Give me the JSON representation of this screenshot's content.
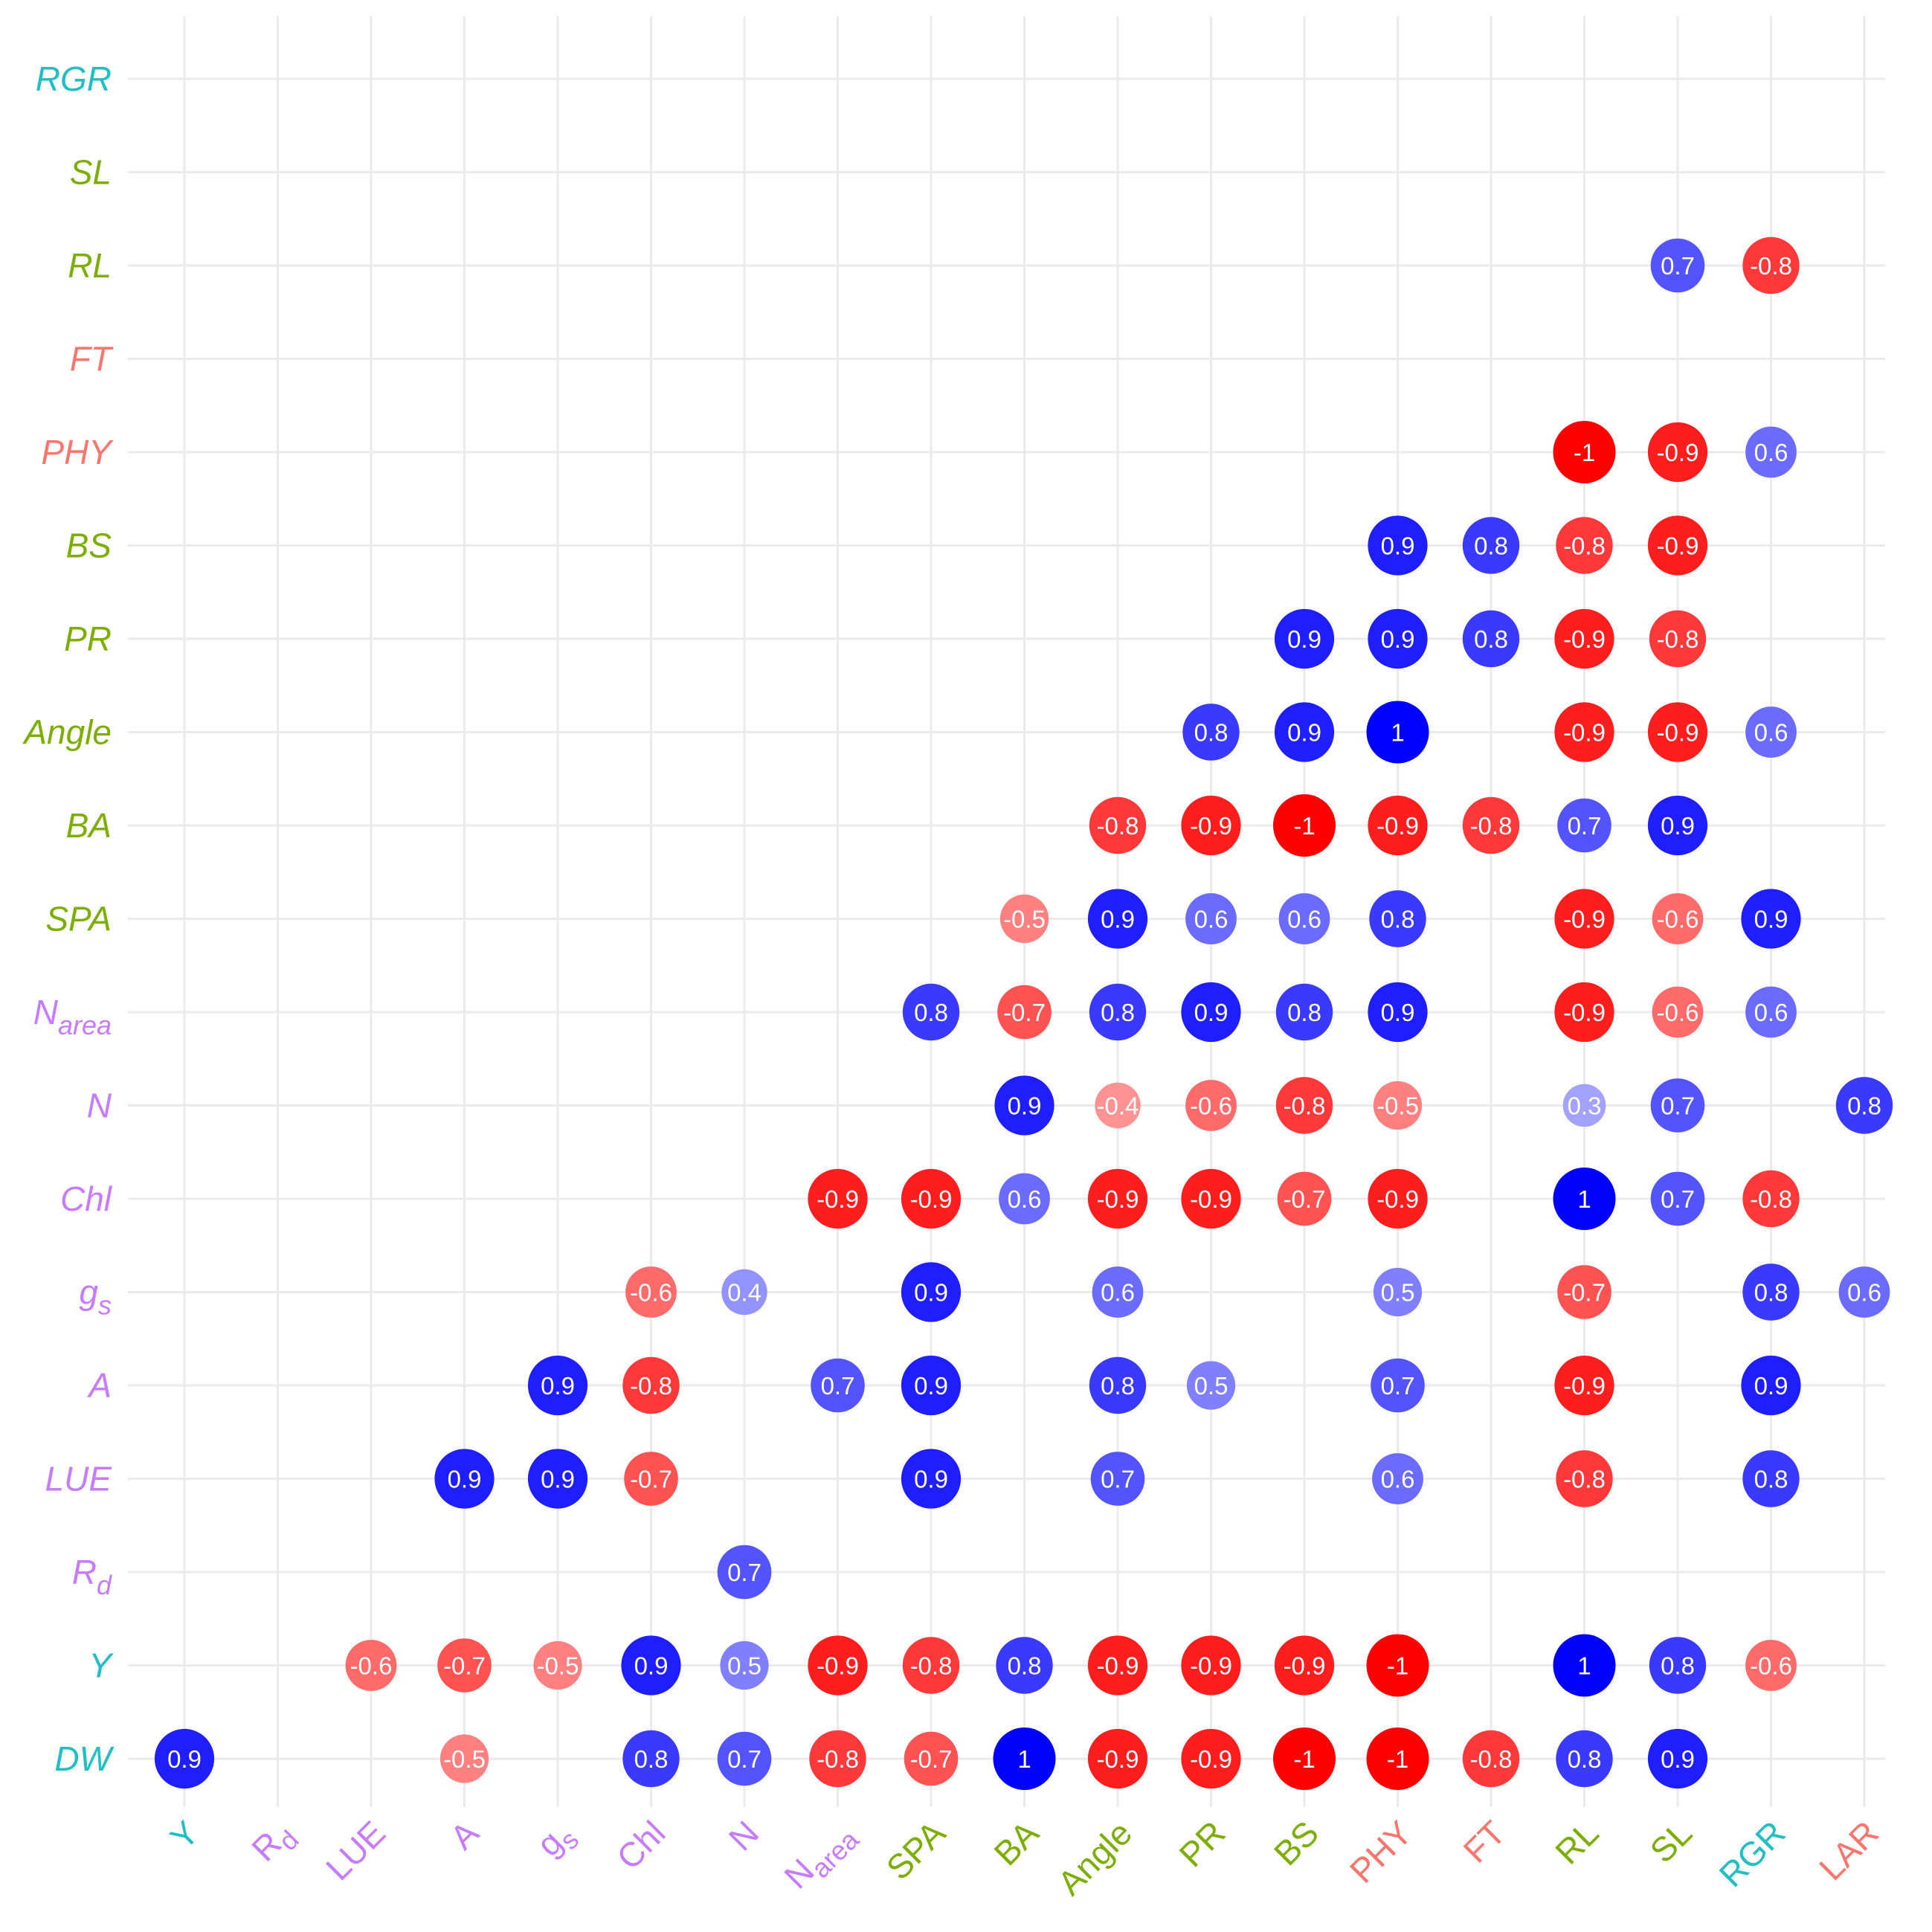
{
  "colors": {
    "group_cyan": "#1FBFC4",
    "group_purple": "#C77CFF",
    "group_green": "#7CAE00",
    "group_red": "#F8766D",
    "positive": "#0000FF",
    "negative": "#FF0000",
    "grid": "#EBEBEB"
  },
  "chart_data": {
    "type": "heatmap",
    "style": "correlation bubble matrix",
    "grid": true,
    "x_labels": [
      {
        "main": "Y",
        "sub": "",
        "italic": false,
        "color_group": "cyan"
      },
      {
        "main": "R",
        "sub": "d",
        "italic": false,
        "color_group": "purple"
      },
      {
        "main": "LUE",
        "sub": "",
        "italic": false,
        "color_group": "purple"
      },
      {
        "main": "A",
        "sub": "",
        "italic": false,
        "color_group": "purple"
      },
      {
        "main": "g",
        "sub": "s",
        "italic": false,
        "color_group": "purple"
      },
      {
        "main": "Chl",
        "sub": "",
        "italic": false,
        "color_group": "purple"
      },
      {
        "main": "N",
        "sub": "",
        "italic": false,
        "color_group": "purple"
      },
      {
        "main": "N",
        "sub": "area",
        "italic": false,
        "color_group": "purple"
      },
      {
        "main": "SPA",
        "sub": "",
        "italic": false,
        "color_group": "green"
      },
      {
        "main": "BA",
        "sub": "",
        "italic": false,
        "color_group": "green"
      },
      {
        "main": "Angle",
        "sub": "",
        "italic": false,
        "color_group": "green"
      },
      {
        "main": "PR",
        "sub": "",
        "italic": false,
        "color_group": "green"
      },
      {
        "main": "BS",
        "sub": "",
        "italic": false,
        "color_group": "green"
      },
      {
        "main": "PHY",
        "sub": "",
        "italic": false,
        "color_group": "red"
      },
      {
        "main": "FT",
        "sub": "",
        "italic": false,
        "color_group": "red"
      },
      {
        "main": "RL",
        "sub": "",
        "italic": false,
        "color_group": "green"
      },
      {
        "main": "SL",
        "sub": "",
        "italic": false,
        "color_group": "green"
      },
      {
        "main": "RGR",
        "sub": "",
        "italic": false,
        "color_group": "cyan"
      },
      {
        "main": "LAR",
        "sub": "",
        "italic": false,
        "color_group": "red"
      }
    ],
    "y_labels": [
      {
        "main": "DW",
        "sub": "",
        "color_group": "cyan"
      },
      {
        "main": "Y",
        "sub": "",
        "color_group": "cyan"
      },
      {
        "main": "R",
        "sub": "d",
        "color_group": "purple"
      },
      {
        "main": "LUE",
        "sub": "",
        "color_group": "purple"
      },
      {
        "main": "A",
        "sub": "",
        "color_group": "purple"
      },
      {
        "main": "g",
        "sub": "s",
        "color_group": "purple"
      },
      {
        "main": "Chl",
        "sub": "",
        "color_group": "purple"
      },
      {
        "main": "N",
        "sub": "",
        "color_group": "purple"
      },
      {
        "main": "N",
        "sub": "area",
        "color_group": "purple"
      },
      {
        "main": "SPA",
        "sub": "",
        "color_group": "green"
      },
      {
        "main": "BA",
        "sub": "",
        "color_group": "green"
      },
      {
        "main": "Angle",
        "sub": "",
        "color_group": "green"
      },
      {
        "main": "PR",
        "sub": "",
        "color_group": "green"
      },
      {
        "main": "BS",
        "sub": "",
        "color_group": "green"
      },
      {
        "main": "PHY",
        "sub": "",
        "color_group": "red"
      },
      {
        "main": "FT",
        "sub": "",
        "color_group": "red"
      },
      {
        "main": "RL",
        "sub": "",
        "color_group": "green"
      },
      {
        "main": "SL",
        "sub": "",
        "color_group": "green"
      },
      {
        "main": "RGR",
        "sub": "",
        "color_group": "cyan"
      }
    ],
    "cells": [
      {
        "x": "Y",
        "y": "DW",
        "value": 0.9,
        "label": "0.9"
      },
      {
        "x": "A",
        "y": "DW",
        "value": -0.5,
        "label": "-0.5"
      },
      {
        "x": "Chl",
        "y": "DW",
        "value": 0.8,
        "label": "0.8"
      },
      {
        "x": "N",
        "y": "DW",
        "value": 0.7,
        "label": "0.7"
      },
      {
        "x": "Narea",
        "y": "DW",
        "value": -0.8,
        "label": "-0.8"
      },
      {
        "x": "SPA",
        "y": "DW",
        "value": -0.7,
        "label": "-0.7"
      },
      {
        "x": "BA",
        "y": "DW",
        "value": 1,
        "label": "1"
      },
      {
        "x": "Angle",
        "y": "DW",
        "value": -0.9,
        "label": "-0.9"
      },
      {
        "x": "PR",
        "y": "DW",
        "value": -0.9,
        "label": "-0.9"
      },
      {
        "x": "BS",
        "y": "DW",
        "value": -1,
        "label": "-1"
      },
      {
        "x": "PHY",
        "y": "DW",
        "value": -1,
        "label": "-1"
      },
      {
        "x": "FT",
        "y": "DW",
        "value": -0.8,
        "label": "-0.8"
      },
      {
        "x": "RL",
        "y": "DW",
        "value": 0.8,
        "label": "0.8"
      },
      {
        "x": "SL",
        "y": "DW",
        "value": 0.9,
        "label": "0.9"
      },
      {
        "x": "LUE",
        "y": "Y",
        "value": -0.6,
        "label": "-0.6"
      },
      {
        "x": "A",
        "y": "Y",
        "value": -0.7,
        "label": "-0.7"
      },
      {
        "x": "gs",
        "y": "Y",
        "value": -0.5,
        "label": "-0.5"
      },
      {
        "x": "Chl",
        "y": "Y",
        "value": 0.9,
        "label": "0.9"
      },
      {
        "x": "N",
        "y": "Y",
        "value": 0.5,
        "label": "0.5"
      },
      {
        "x": "Narea",
        "y": "Y",
        "value": -0.9,
        "label": "-0.9"
      },
      {
        "x": "SPA",
        "y": "Y",
        "value": -0.8,
        "label": "-0.8"
      },
      {
        "x": "BA",
        "y": "Y",
        "value": 0.8,
        "label": "0.8"
      },
      {
        "x": "Angle",
        "y": "Y",
        "value": -0.9,
        "label": "-0.9"
      },
      {
        "x": "PR",
        "y": "Y",
        "value": -0.9,
        "label": "-0.9"
      },
      {
        "x": "BS",
        "y": "Y",
        "value": -0.9,
        "label": "-0.9"
      },
      {
        "x": "PHY",
        "y": "Y",
        "value": -1,
        "label": "-1"
      },
      {
        "x": "RL",
        "y": "Y",
        "value": 1,
        "label": "1"
      },
      {
        "x": "SL",
        "y": "Y",
        "value": 0.8,
        "label": "0.8"
      },
      {
        "x": "RGR",
        "y": "Y",
        "value": -0.6,
        "label": "-0.6"
      },
      {
        "x": "N",
        "y": "Rd",
        "value": 0.7,
        "label": "0.7"
      },
      {
        "x": "A",
        "y": "LUE",
        "value": 0.9,
        "label": "0.9"
      },
      {
        "x": "gs",
        "y": "LUE",
        "value": 0.9,
        "label": "0.9"
      },
      {
        "x": "Chl",
        "y": "LUE",
        "value": -0.7,
        "label": "-0.7"
      },
      {
        "x": "SPA",
        "y": "LUE",
        "value": 0.9,
        "label": "0.9"
      },
      {
        "x": "Angle",
        "y": "LUE",
        "value": 0.7,
        "label": "0.7"
      },
      {
        "x": "PHY",
        "y": "LUE",
        "value": 0.6,
        "label": "0.6"
      },
      {
        "x": "RL",
        "y": "LUE",
        "value": -0.8,
        "label": "-0.8"
      },
      {
        "x": "RGR",
        "y": "LUE",
        "value": 0.8,
        "label": "0.8"
      },
      {
        "x": "gs",
        "y": "A",
        "value": 0.9,
        "label": "0.9"
      },
      {
        "x": "Chl",
        "y": "A",
        "value": -0.8,
        "label": "-0.8"
      },
      {
        "x": "Narea",
        "y": "A",
        "value": 0.7,
        "label": "0.7"
      },
      {
        "x": "SPA",
        "y": "A",
        "value": 0.9,
        "label": "0.9"
      },
      {
        "x": "Angle",
        "y": "A",
        "value": 0.8,
        "label": "0.8"
      },
      {
        "x": "PR",
        "y": "A",
        "value": 0.5,
        "label": "0.5"
      },
      {
        "x": "PHY",
        "y": "A",
        "value": 0.7,
        "label": "0.7"
      },
      {
        "x": "RL",
        "y": "A",
        "value": -0.9,
        "label": "-0.9"
      },
      {
        "x": "RGR",
        "y": "A",
        "value": 0.9,
        "label": "0.9"
      },
      {
        "x": "Chl",
        "y": "gs",
        "value": -0.6,
        "label": "-0.6"
      },
      {
        "x": "N",
        "y": "gs",
        "value": 0.4,
        "label": "0.4"
      },
      {
        "x": "SPA",
        "y": "gs",
        "value": 0.9,
        "label": "0.9"
      },
      {
        "x": "Angle",
        "y": "gs",
        "value": 0.6,
        "label": "0.6"
      },
      {
        "x": "PHY",
        "y": "gs",
        "value": 0.5,
        "label": "0.5"
      },
      {
        "x": "RL",
        "y": "gs",
        "value": -0.7,
        "label": "-0.7"
      },
      {
        "x": "RGR",
        "y": "gs",
        "value": 0.8,
        "label": "0.8"
      },
      {
        "x": "LAR",
        "y": "gs",
        "value": 0.6,
        "label": "0.6"
      },
      {
        "x": "Narea",
        "y": "Chl",
        "value": -0.9,
        "label": "-0.9"
      },
      {
        "x": "SPA",
        "y": "Chl",
        "value": -0.9,
        "label": "-0.9"
      },
      {
        "x": "BA",
        "y": "Chl",
        "value": 0.6,
        "label": "0.6"
      },
      {
        "x": "Angle",
        "y": "Chl",
        "value": -0.9,
        "label": "-0.9"
      },
      {
        "x": "PR",
        "y": "Chl",
        "value": -0.9,
        "label": "-0.9"
      },
      {
        "x": "BS",
        "y": "Chl",
        "value": -0.7,
        "label": "-0.7"
      },
      {
        "x": "PHY",
        "y": "Chl",
        "value": -0.9,
        "label": "-0.9"
      },
      {
        "x": "RL",
        "y": "Chl",
        "value": 1,
        "label": "1"
      },
      {
        "x": "SL",
        "y": "Chl",
        "value": 0.7,
        "label": "0.7"
      },
      {
        "x": "RGR",
        "y": "Chl",
        "value": -0.8,
        "label": "-0.8"
      },
      {
        "x": "BA",
        "y": "N",
        "value": 0.9,
        "label": "0.9"
      },
      {
        "x": "Angle",
        "y": "N",
        "value": -0.4,
        "label": "-0.4"
      },
      {
        "x": "PR",
        "y": "N",
        "value": -0.6,
        "label": "-0.6"
      },
      {
        "x": "BS",
        "y": "N",
        "value": -0.8,
        "label": "-0.8"
      },
      {
        "x": "PHY",
        "y": "N",
        "value": -0.5,
        "label": "-0.5"
      },
      {
        "x": "RL",
        "y": "N",
        "value": 0.3,
        "label": "0.3"
      },
      {
        "x": "SL",
        "y": "N",
        "value": 0.7,
        "label": "0.7"
      },
      {
        "x": "LAR",
        "y": "N",
        "value": 0.8,
        "label": "0.8"
      },
      {
        "x": "SPA",
        "y": "Narea",
        "value": 0.8,
        "label": "0.8"
      },
      {
        "x": "BA",
        "y": "Narea",
        "value": -0.7,
        "label": "-0.7"
      },
      {
        "x": "Angle",
        "y": "Narea",
        "value": 0.8,
        "label": "0.8"
      },
      {
        "x": "PR",
        "y": "Narea",
        "value": 0.9,
        "label": "0.9"
      },
      {
        "x": "BS",
        "y": "Narea",
        "value": 0.8,
        "label": "0.8"
      },
      {
        "x": "PHY",
        "y": "Narea",
        "value": 0.9,
        "label": "0.9"
      },
      {
        "x": "RL",
        "y": "Narea",
        "value": -0.9,
        "label": "-0.9"
      },
      {
        "x": "SL",
        "y": "Narea",
        "value": -0.6,
        "label": "-0.6"
      },
      {
        "x": "RGR",
        "y": "Narea",
        "value": 0.6,
        "label": "0.6"
      },
      {
        "x": "BA",
        "y": "SPA",
        "value": -0.5,
        "label": "-0.5"
      },
      {
        "x": "Angle",
        "y": "SPA",
        "value": 0.9,
        "label": "0.9"
      },
      {
        "x": "PR",
        "y": "SPA",
        "value": 0.6,
        "label": "0.6"
      },
      {
        "x": "BS",
        "y": "SPA",
        "value": 0.6,
        "label": "0.6"
      },
      {
        "x": "PHY",
        "y": "SPA",
        "value": 0.8,
        "label": "0.8"
      },
      {
        "x": "RL",
        "y": "SPA",
        "value": -0.9,
        "label": "-0.9"
      },
      {
        "x": "SL",
        "y": "SPA",
        "value": -0.6,
        "label": "-0.6"
      },
      {
        "x": "RGR",
        "y": "SPA",
        "value": 0.9,
        "label": "0.9"
      },
      {
        "x": "Angle",
        "y": "BA",
        "value": -0.8,
        "label": "-0.8"
      },
      {
        "x": "PR",
        "y": "BA",
        "value": -0.9,
        "label": "-0.9"
      },
      {
        "x": "BS",
        "y": "BA",
        "value": -1,
        "label": "-1"
      },
      {
        "x": "PHY",
        "y": "BA",
        "value": -0.9,
        "label": "-0.9"
      },
      {
        "x": "FT",
        "y": "BA",
        "value": -0.8,
        "label": "-0.8"
      },
      {
        "x": "RL",
        "y": "BA",
        "value": 0.7,
        "label": "0.7"
      },
      {
        "x": "SL",
        "y": "BA",
        "value": 0.9,
        "label": "0.9"
      },
      {
        "x": "PR",
        "y": "Angle",
        "value": 0.8,
        "label": "0.8"
      },
      {
        "x": "BS",
        "y": "Angle",
        "value": 0.9,
        "label": "0.9"
      },
      {
        "x": "PHY",
        "y": "Angle",
        "value": 1,
        "label": "1"
      },
      {
        "x": "RL",
        "y": "Angle",
        "value": -0.9,
        "label": "-0.9"
      },
      {
        "x": "SL",
        "y": "Angle",
        "value": -0.9,
        "label": "-0.9"
      },
      {
        "x": "RGR",
        "y": "Angle",
        "value": 0.6,
        "label": "0.6"
      },
      {
        "x": "BS",
        "y": "PR",
        "value": 0.9,
        "label": "0.9"
      },
      {
        "x": "PHY",
        "y": "PR",
        "value": 0.9,
        "label": "0.9"
      },
      {
        "x": "FT",
        "y": "PR",
        "value": 0.8,
        "label": "0.8"
      },
      {
        "x": "RL",
        "y": "PR",
        "value": -0.9,
        "label": "-0.9"
      },
      {
        "x": "SL",
        "y": "PR",
        "value": -0.8,
        "label": "-0.8"
      },
      {
        "x": "PHY",
        "y": "BS",
        "value": 0.9,
        "label": "0.9"
      },
      {
        "x": "FT",
        "y": "BS",
        "value": 0.8,
        "label": "0.8"
      },
      {
        "x": "RL",
        "y": "BS",
        "value": -0.8,
        "label": "-0.8"
      },
      {
        "x": "SL",
        "y": "BS",
        "value": -0.9,
        "label": "-0.9"
      },
      {
        "x": "RL",
        "y": "PHY",
        "value": -1,
        "label": "-1"
      },
      {
        "x": "SL",
        "y": "PHY",
        "value": -0.9,
        "label": "-0.9"
      },
      {
        "x": "RGR",
        "y": "PHY",
        "value": 0.6,
        "label": "0.6"
      },
      {
        "x": "SL",
        "y": "RL",
        "value": 0.7,
        "label": "0.7"
      },
      {
        "x": "RGR",
        "y": "RL",
        "value": -0.8,
        "label": "-0.8"
      }
    ]
  }
}
